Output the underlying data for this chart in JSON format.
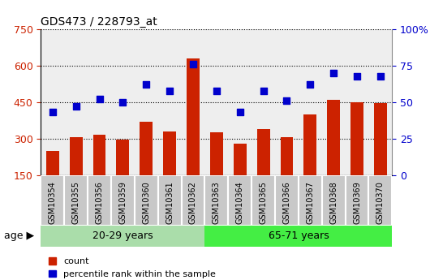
{
  "title": "GDS473 / 228793_at",
  "categories": [
    "GSM10354",
    "GSM10355",
    "GSM10356",
    "GSM10359",
    "GSM10360",
    "GSM10361",
    "GSM10362",
    "GSM10363",
    "GSM10364",
    "GSM10365",
    "GSM10366",
    "GSM10367",
    "GSM10368",
    "GSM10369",
    "GSM10370"
  ],
  "bar_values": [
    248,
    305,
    315,
    295,
    370,
    330,
    630,
    325,
    280,
    340,
    305,
    400,
    460,
    450,
    445
  ],
  "scatter_values": [
    43,
    47,
    52,
    50,
    62,
    58,
    76,
    58,
    43,
    58,
    51,
    62,
    70,
    68,
    68
  ],
  "bar_color": "#cc2200",
  "scatter_color": "#0000cc",
  "group1_label": "20-29 years",
  "group2_label": "65-71 years",
  "group1_count": 7,
  "group2_count": 8,
  "group1_bg": "#aaddaa",
  "group2_bg": "#44ee44",
  "tick_bg": "#c8c8c8",
  "age_label": "age",
  "ylim_left": [
    150,
    750
  ],
  "ylim_right": [
    0,
    100
  ],
  "yticks_left": [
    150,
    300,
    450,
    600,
    750
  ],
  "yticks_right": [
    0,
    25,
    50,
    75,
    100
  ],
  "legend_count_label": "count",
  "legend_pct_label": "percentile rank within the sample",
  "bar_width": 0.55,
  "plot_bg": "#eeeeee",
  "grid_color": "#000000",
  "white": "#ffffff"
}
